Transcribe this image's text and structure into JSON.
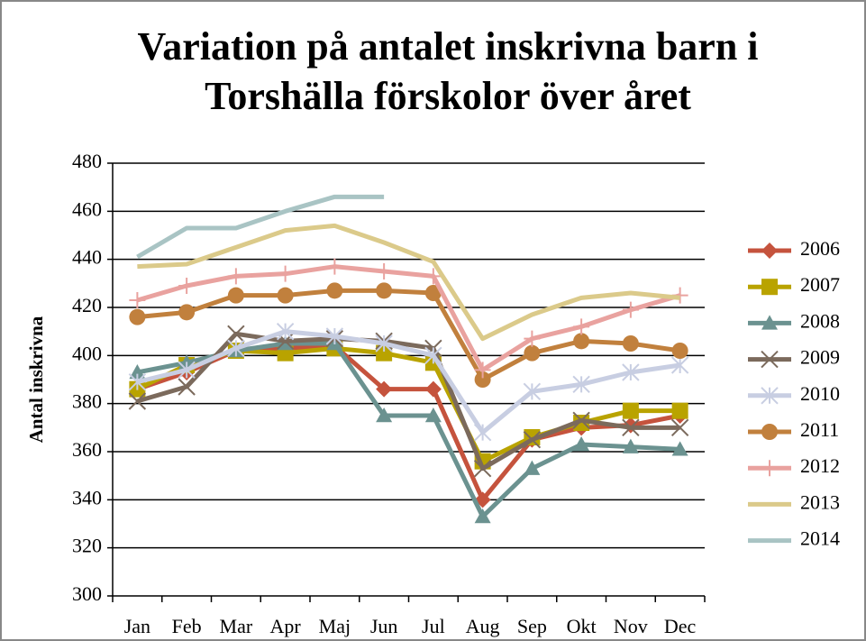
{
  "chart_data": {
    "type": "line",
    "title": [
      "Variation på antalet inskrivna barn  i",
      "Torshälla förskolor över året"
    ],
    "y_label": "Antal inskrivna",
    "categories": [
      "Jan",
      "Feb",
      "Mar",
      "Apr",
      "Maj",
      "Jun",
      "Jul",
      "Aug",
      "Sep",
      "Okt",
      "Nov",
      "Dec"
    ],
    "ylim": [
      300,
      480
    ],
    "yticks": [
      300,
      320,
      340,
      360,
      380,
      400,
      420,
      440,
      460,
      480
    ],
    "grid": true,
    "legend": "right",
    "series": [
      {
        "name": "2006",
        "color": "#c5533d",
        "marker": "diamond",
        "values": [
          386,
          393,
          402,
          403,
          404,
          386,
          386,
          340,
          365,
          370,
          371,
          375
        ]
      },
      {
        "name": "2007",
        "color": "#b9a300",
        "marker": "square",
        "values": [
          386,
          396,
          402,
          401,
          403,
          401,
          397,
          356,
          366,
          372,
          377,
          377
        ]
      },
      {
        "name": "2008",
        "color": "#6b9290",
        "marker": "triangle",
        "values": [
          393,
          397,
          402,
          405,
          405,
          375,
          375,
          333,
          353,
          363,
          362,
          361
        ]
      },
      {
        "name": "2009",
        "color": "#7b6a5c",
        "marker": "x",
        "values": [
          381,
          387,
          409,
          406,
          407,
          406,
          403,
          353,
          365,
          373,
          370,
          370
        ]
      },
      {
        "name": "2010",
        "color": "#c8cee2",
        "marker": "star",
        "values": [
          389,
          394,
          403,
          410,
          408,
          405,
          400,
          368,
          385,
          388,
          393,
          396
        ]
      },
      {
        "name": "2011",
        "color": "#c1803d",
        "marker": "circle",
        "values": [
          416,
          418,
          425,
          425,
          427,
          427,
          426,
          390,
          401,
          406,
          405,
          402
        ]
      },
      {
        "name": "2012",
        "color": "#e9a29f",
        "marker": "plus",
        "values": [
          423,
          429,
          433,
          434,
          437,
          435,
          433,
          394,
          407,
          412,
          419,
          425
        ]
      },
      {
        "name": "2013",
        "color": "#dbca8a",
        "marker": "none",
        "values": [
          437,
          438,
          445,
          452,
          454,
          447,
          439,
          407,
          417,
          424,
          426,
          424
        ]
      },
      {
        "name": "2014",
        "color": "#a9c4c4",
        "marker": "none",
        "values": [
          441,
          453,
          453,
          460,
          466,
          466,
          null,
          null,
          null,
          null,
          null,
          null
        ]
      }
    ]
  }
}
